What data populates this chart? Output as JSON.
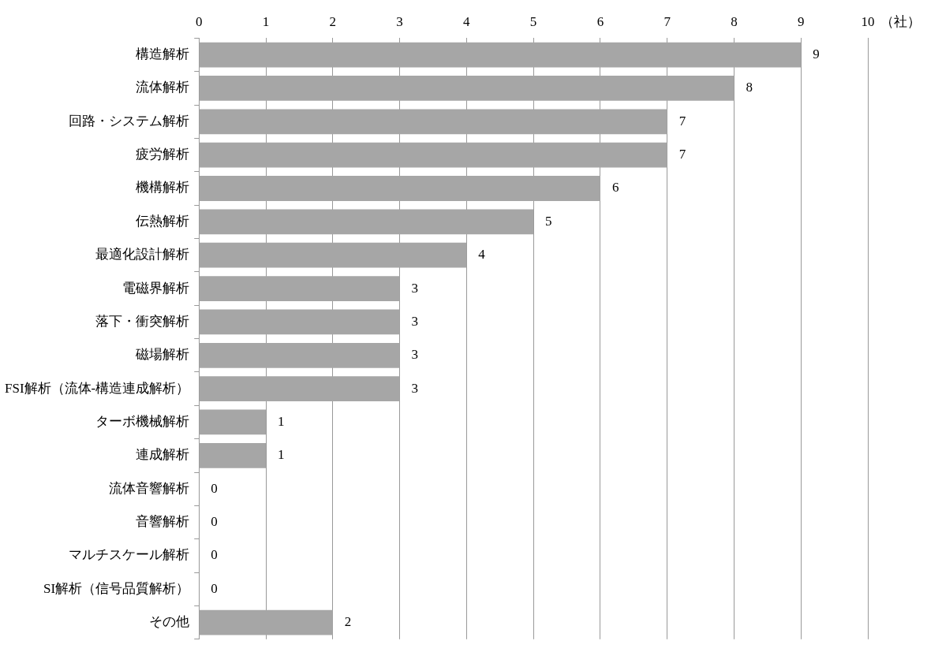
{
  "chart_data": {
    "type": "bar",
    "orientation": "horizontal",
    "xlabel": "（社）",
    "categories": [
      "構造解析",
      "流体解析",
      "回路・システム解析",
      "疲労解析",
      "機構解析",
      "伝熱解析",
      "最適化設計解析",
      "電磁界解析",
      "落下・衝突解析",
      "磁場解析",
      "FSI解析（流体-構造連成解析）",
      "ターボ機械解析",
      "連成解析",
      "流体音響解析",
      "音響解析",
      "マルチスケール解析",
      "SI解析（信号品質解析）",
      "その他"
    ],
    "values": [
      9,
      8,
      7,
      7,
      6,
      5,
      4,
      3,
      3,
      3,
      3,
      1,
      1,
      0,
      0,
      0,
      0,
      2
    ],
    "color": "#a6a6a6",
    "xlim": [
      0,
      10
    ],
    "xticks": [
      0,
      1,
      2,
      3,
      4,
      5,
      6,
      7,
      8,
      9,
      10
    ],
    "grid": "x",
    "data_labels": true,
    "legend": false
  }
}
